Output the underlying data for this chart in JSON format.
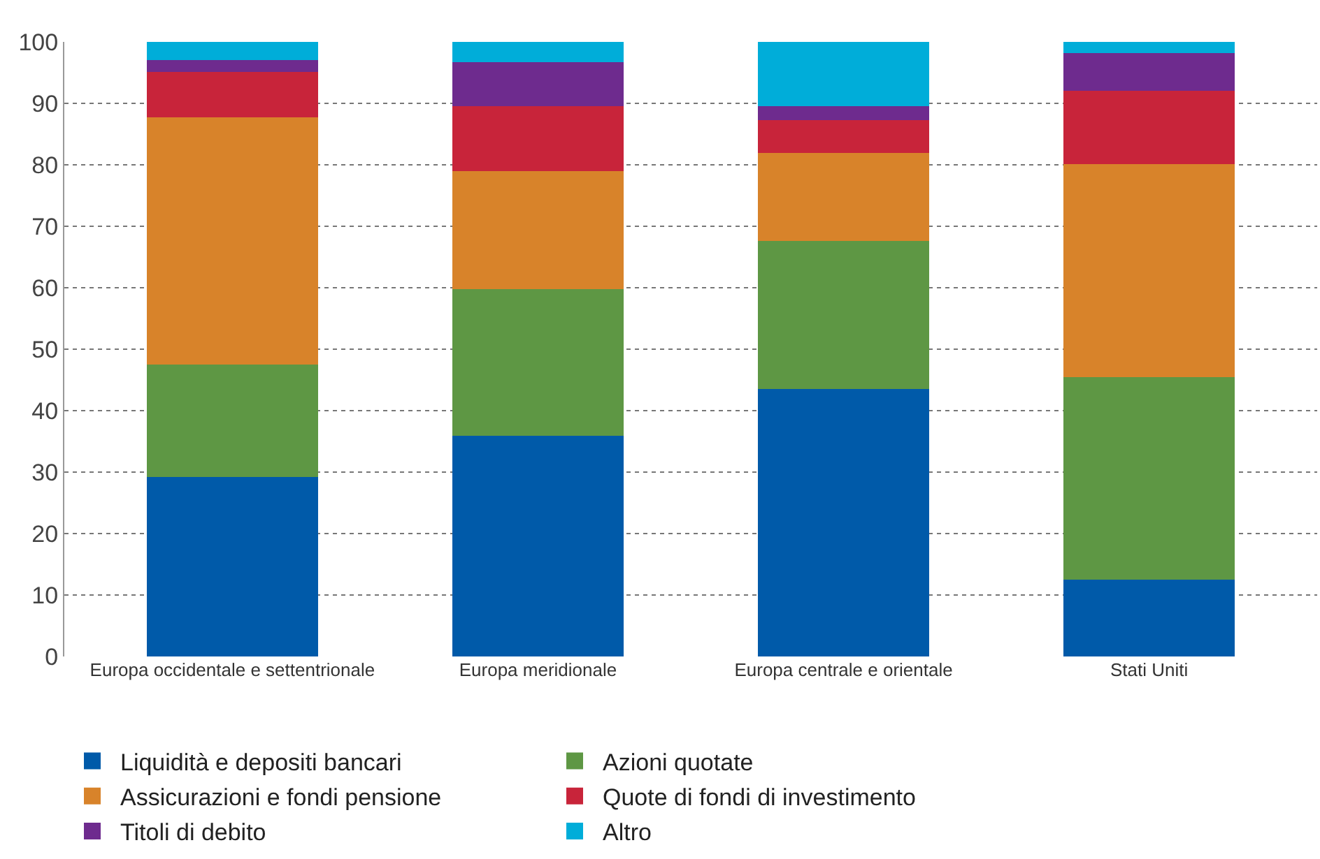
{
  "chart_data": {
    "type": "bar",
    "stacked": true,
    "categories": [
      "Europa occidentale e settentrionale",
      "Europa meridionale",
      "Europa centrale e orientale",
      "Stati Uniti"
    ],
    "series": [
      {
        "name": "Liquidità e depositi bancari",
        "color": "#005aa9",
        "values": [
          29.2,
          35.9,
          43.5,
          12.5
        ]
      },
      {
        "name": "Azioni quotate",
        "color": "#5e9744",
        "values": [
          18.3,
          23.9,
          24.1,
          33.0
        ]
      },
      {
        "name": "Assicurazioni e fondi pensione",
        "color": "#d8832a",
        "values": [
          40.2,
          19.2,
          14.3,
          34.6
        ]
      },
      {
        "name": "Quote di fondi di investimento",
        "color": "#c8243a",
        "values": [
          7.4,
          10.5,
          5.4,
          11.9
        ]
      },
      {
        "name": "Titoli di debito",
        "color": "#6e2b8e",
        "values": [
          2.0,
          7.2,
          2.2,
          6.2
        ]
      },
      {
        "name": "Altro",
        "color": "#00add9",
        "values": [
          2.9,
          3.3,
          10.5,
          1.8
        ]
      }
    ],
    "ylim": [
      0,
      100
    ],
    "yticks": [
      0,
      10,
      20,
      30,
      40,
      50,
      60,
      70,
      80,
      90,
      100
    ],
    "grid": "y",
    "legend": "bottom"
  }
}
